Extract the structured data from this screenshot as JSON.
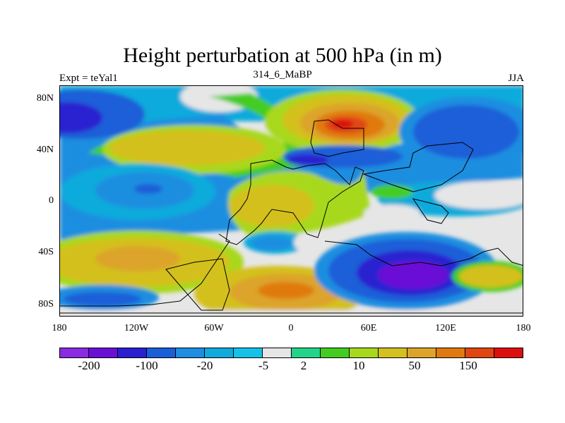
{
  "title": "Height perturbation at 500 hPa (in m)",
  "left_string": "Expt = teYal1",
  "center_string": "314_6_MaBP",
  "right_string": "JJA",
  "lat_ticks": [
    "80N",
    "40N",
    "0",
    "40S",
    "80S"
  ],
  "lon_ticks": [
    "180",
    "120W",
    "60W",
    "0",
    "60E",
    "120E",
    "180"
  ],
  "colorbar": {
    "colors": [
      "#8a2be2",
      "#6a0fd6",
      "#2a20d0",
      "#1a5ed8",
      "#1f8ee0",
      "#10aadc",
      "#14c2e8",
      "#e6e6e6",
      "#22d488",
      "#44cc22",
      "#a8d81e",
      "#d4c01e",
      "#dca42a",
      "#e07a10",
      "#e04612",
      "#dc0e0e"
    ],
    "labels": [
      "-200",
      "-100",
      "-20",
      "-5",
      "2",
      "10",
      "50",
      "150"
    ]
  }
}
